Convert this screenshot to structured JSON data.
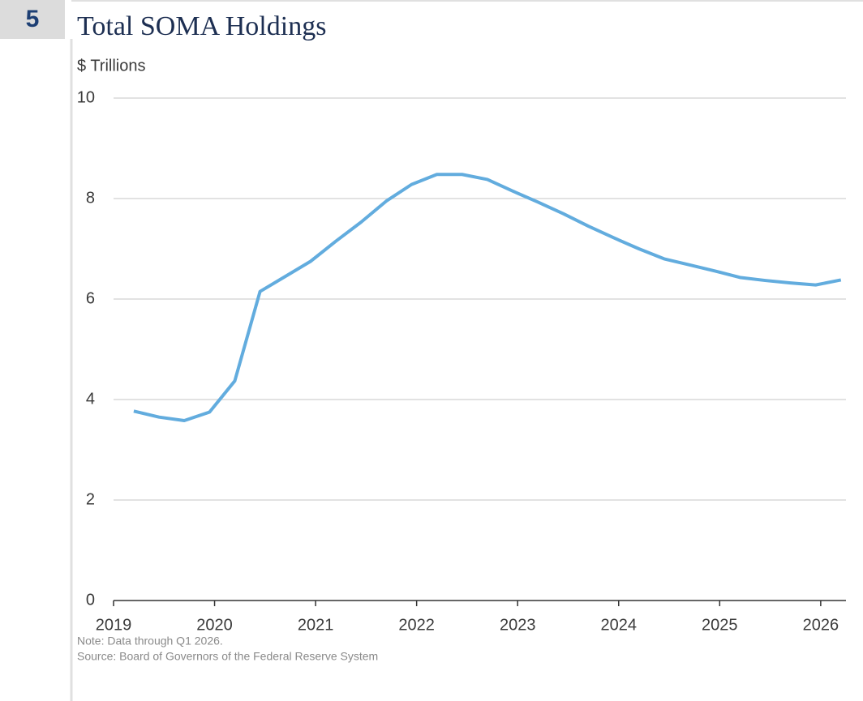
{
  "badge": "5",
  "chart_data": {
    "type": "line",
    "title": "Total SOMA Holdings",
    "y_label": "$ Trillions",
    "note": "Note: Data through Q1 2026.",
    "source": "Source: Board of Governors of the Federal Reserve System",
    "x": [
      2019.2,
      2019.45,
      2019.7,
      2019.95,
      2020.2,
      2020.45,
      2020.7,
      2020.95,
      2021.2,
      2021.45,
      2021.7,
      2021.95,
      2022.2,
      2022.45,
      2022.7,
      2022.95,
      2023.2,
      2023.45,
      2023.7,
      2023.95,
      2024.2,
      2024.45,
      2024.7,
      2024.95,
      2025.2,
      2025.45,
      2025.7,
      2025.95,
      2026.2
    ],
    "series": [
      {
        "name": "Total SOMA Holdings",
        "color": "#62acde",
        "values": [
          3.77,
          3.65,
          3.58,
          3.75,
          4.37,
          6.15,
          6.45,
          6.75,
          7.15,
          7.53,
          7.95,
          8.28,
          8.48,
          8.48,
          8.38,
          8.15,
          7.93,
          7.7,
          7.45,
          7.22,
          7.0,
          6.8,
          6.68,
          6.56,
          6.43,
          6.37,
          6.32,
          6.28,
          6.38
        ]
      }
    ],
    "xlim": [
      2019,
      2026.25
    ],
    "xticks": [
      2019,
      2020,
      2021,
      2022,
      2023,
      2024,
      2025,
      2026
    ],
    "ylim": [
      0,
      10
    ],
    "yticks": [
      0,
      2,
      4,
      6,
      8,
      10
    ],
    "grid": true
  }
}
